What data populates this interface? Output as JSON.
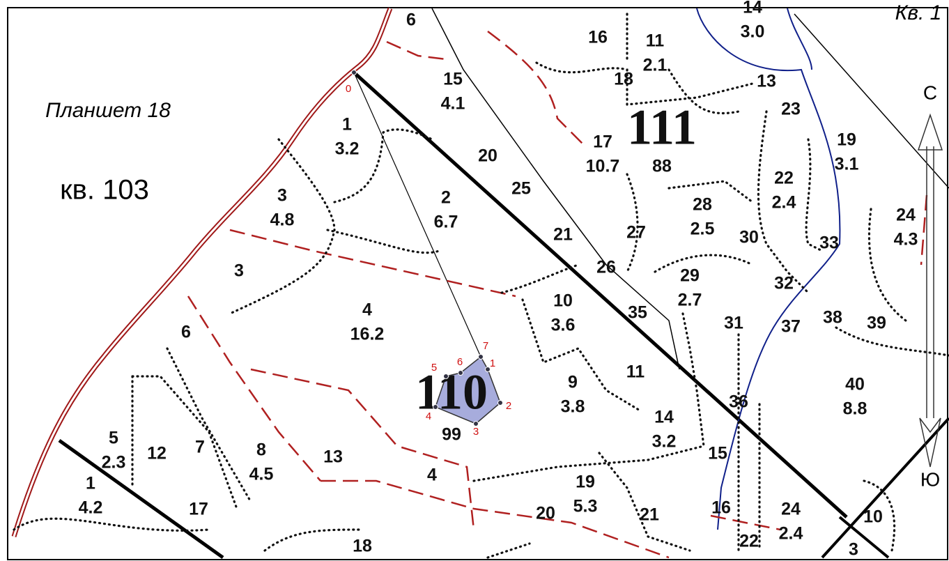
{
  "map": {
    "sheet": "Планшет 18",
    "quarter": "кв. 103",
    "quarter_top": "Кв. 1",
    "parcels": [
      {
        "number": "6"
      },
      {
        "number": "16"
      },
      {
        "number": "11",
        "area": "2.1"
      },
      {
        "number": "14",
        "area": "3.0"
      },
      {
        "number": "15",
        "area": "4.1"
      },
      {
        "number": "18"
      },
      {
        "number": "13"
      },
      {
        "number": "23"
      },
      {
        "number": "1",
        "area": "3.2"
      },
      {
        "number": "17",
        "area": "10.7"
      },
      {
        "number": "20"
      },
      {
        "number": "19",
        "area": "3.1"
      },
      {
        "number": "22",
        "area": "2.4"
      },
      {
        "number": "25"
      },
      {
        "number": "2",
        "area": "6.7"
      },
      {
        "number": "3",
        "area": "4.8"
      },
      {
        "number": "28",
        "area": "2.5"
      },
      {
        "number": "24",
        "area": "4.3"
      },
      {
        "number": "21"
      },
      {
        "number": "27"
      },
      {
        "number": "30"
      },
      {
        "number": "33"
      },
      {
        "number": "3"
      },
      {
        "number": "26"
      },
      {
        "number": "29",
        "area": "2.7"
      },
      {
        "number": "32"
      },
      {
        "number": "10",
        "area": "3.6"
      },
      {
        "number": "35"
      },
      {
        "number": "4",
        "area": "16.2"
      },
      {
        "number": "6"
      },
      {
        "number": "31"
      },
      {
        "number": "37"
      },
      {
        "number": "38"
      },
      {
        "number": "39"
      },
      {
        "number": "11"
      },
      {
        "number": "9",
        "area": "3.8"
      },
      {
        "number": "14",
        "area": "3.2"
      },
      {
        "number": "36"
      },
      {
        "number": "40",
        "area": "8.8"
      },
      {
        "number": "5",
        "area": "2.3"
      },
      {
        "number": "12"
      },
      {
        "number": "7"
      },
      {
        "number": "8",
        "area": "4.5"
      },
      {
        "number": "13"
      },
      {
        "number": "15"
      },
      {
        "number": "19",
        "area": "5.3"
      },
      {
        "number": "4"
      },
      {
        "number": "1",
        "area": "4.2"
      },
      {
        "number": "17"
      },
      {
        "number": "21"
      },
      {
        "number": "16"
      },
      {
        "number": "24",
        "area": "2.4"
      },
      {
        "number": "20"
      },
      {
        "number": "10"
      },
      {
        "number": "22"
      },
      {
        "number": "18"
      },
      {
        "number": "3"
      }
    ],
    "blocks": [
      {
        "number": "111",
        "area": "88"
      },
      {
        "number": "110",
        "area": "99"
      }
    ],
    "points": [
      "0",
      "1",
      "2",
      "3",
      "4",
      "5",
      "6",
      "7"
    ],
    "compass": {
      "north": "С",
      "south": "Ю"
    }
  }
}
